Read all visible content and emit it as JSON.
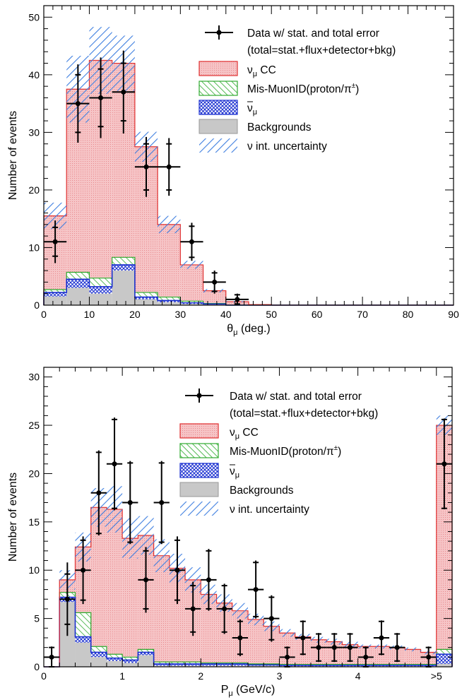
{
  "colors": {
    "cc_fill": "#f6c4c6",
    "cc_line": "#e03030",
    "misid": "#2faa2f",
    "nubar": "#1a2fd0",
    "bkg": "#c8c8c8",
    "unc": "#3f7fe0",
    "data": "#000000"
  },
  "chart_data": [
    {
      "type": "bar",
      "subtype": "stacked-histogram",
      "name": "theta",
      "xlabel": "θμ (deg.)",
      "xlabel_main": "θ",
      "xlabel_sub": "μ",
      "xlabel_rest": " (deg.)",
      "ylabel": "Number of events",
      "xlim": [
        0,
        90
      ],
      "ylim": [
        0,
        52
      ],
      "xticks": [
        0,
        10,
        20,
        30,
        40,
        50,
        60,
        70,
        80,
        90
      ],
      "xtick_labels": [
        "0",
        "10",
        "20",
        "30",
        "40",
        "50",
        "60",
        "70",
        "80",
        "90"
      ],
      "yticks": [
        0,
        10,
        20,
        30,
        40,
        50
      ],
      "ytick_labels": [
        "0",
        "10",
        "20",
        "30",
        "40",
        "50"
      ],
      "bin_edges": [
        0,
        5,
        10,
        15,
        20,
        25,
        30,
        35,
        40,
        45,
        50,
        55,
        60,
        65,
        70,
        75,
        80,
        85,
        90
      ],
      "bkg": [
        1.5,
        3.0,
        2.0,
        6.0,
        1.0,
        0.5,
        0.2,
        0.1,
        0.0,
        0.0,
        0,
        0,
        0,
        0,
        0,
        0,
        0,
        0
      ],
      "nubar": [
        0.7,
        1.5,
        1.2,
        1.0,
        0.4,
        0.3,
        0.2,
        0.1,
        0.0,
        0.0,
        0,
        0,
        0,
        0,
        0,
        0,
        0,
        0
      ],
      "misid": [
        0.5,
        1.2,
        1.5,
        1.3,
        0.8,
        0.6,
        0.3,
        0.1,
        0.0,
        0.0,
        0,
        0,
        0,
        0,
        0,
        0,
        0,
        0
      ],
      "total": [
        15.5,
        37.5,
        42.5,
        42.0,
        27.5,
        14.0,
        7.0,
        2.5,
        0.6,
        0.1,
        0,
        0,
        0,
        0,
        0,
        0,
        0,
        0
      ],
      "unc": [
        2.3,
        5.8,
        5.8,
        4.8,
        2.6,
        1.5,
        0.7,
        0.3,
        0.1,
        0.0,
        0,
        0,
        0,
        0,
        0,
        0,
        0,
        0
      ],
      "data": [
        {
          "x": 2.5,
          "y": 11,
          "xerr": 2.5,
          "stat": 2.5,
          "tot": 3.7
        },
        {
          "x": 7.5,
          "y": 35,
          "xerr": 2.5,
          "stat": 5.0,
          "tot": 6.8
        },
        {
          "x": 12.5,
          "y": 36,
          "xerr": 2.5,
          "stat": 5.0,
          "tot": 7.0
        },
        {
          "x": 17.5,
          "y": 37,
          "xerr": 2.5,
          "stat": 5.0,
          "tot": 7.2
        },
        {
          "x": 22.5,
          "y": 24,
          "xerr": 2.5,
          "stat": 4.0,
          "tot": 5.2
        },
        {
          "x": 27.5,
          "y": 24,
          "xerr": 2.5,
          "stat": 4.0,
          "tot": 5.0
        },
        {
          "x": 32.5,
          "y": 11,
          "xerr": 2.5,
          "stat": 2.7,
          "tot": 3.3
        },
        {
          "x": 37.5,
          "y": 4,
          "xerr": 2.5,
          "stat": 1.6,
          "tot": 2.0
        },
        {
          "x": 42.5,
          "y": 1,
          "xerr": 2.5,
          "stat": 0.8,
          "tot": 1.0
        }
      ],
      "legend": {
        "data": "Data w/ stat. and total error",
        "data_note": "(total=stat.+flux+detector+bkg)",
        "cc_main": "ν",
        "cc_sub": "μ",
        "cc_rest": " CC",
        "misid_main": "Mis-MuonID(proton/π",
        "misid_sup": "±",
        "misid_close": ")",
        "nubar_main": "ν",
        "nubar_sub": "μ",
        "bkg": "Backgrounds",
        "unc": "ν int. uncertainty"
      }
    },
    {
      "type": "bar",
      "subtype": "stacked-histogram",
      "name": "momentum",
      "xlabel": "Pμ (GeV/c)",
      "xlabel_main": "P",
      "xlabel_sub": "μ",
      "xlabel_rest": " (GeV/c)",
      "ylabel": "Number of events",
      "xlim": [
        0,
        5.2
      ],
      "ylim": [
        0,
        31
      ],
      "xticks": [
        0,
        1,
        2,
        3,
        4,
        5
      ],
      "xtick_labels": [
        "0",
        "1",
        "2",
        "3",
        "4",
        ">5"
      ],
      "yticks": [
        0,
        5,
        10,
        15,
        20,
        25,
        30
      ],
      "ytick_labels": [
        "0",
        "5",
        "10",
        "15",
        "20",
        "25",
        "30"
      ],
      "bin_edges": [
        0,
        0.2,
        0.4,
        0.6,
        0.8,
        1.0,
        1.2,
        1.4,
        1.6,
        1.8,
        2.0,
        2.2,
        2.4,
        2.6,
        2.8,
        3.0,
        3.2,
        3.4,
        3.6,
        3.8,
        4.0,
        4.2,
        4.4,
        4.6,
        4.8,
        5.0,
        5.2
      ],
      "bkg": [
        0,
        6.7,
        2.5,
        1.0,
        0.6,
        0.4,
        1.2,
        0.1,
        0.1,
        0.1,
        0.1,
        0.1,
        0.1,
        0.1,
        0.1,
        0.05,
        0.05,
        0.05,
        0.05,
        0.05,
        0.05,
        0.05,
        0.05,
        0.05,
        0.05,
        0.3
      ],
      "nubar": [
        0,
        0.5,
        0.6,
        0.5,
        0.3,
        0.3,
        0.3,
        0.2,
        0.2,
        0.2,
        0.2,
        0.2,
        0.2,
        0.1,
        0.1,
        0.1,
        0.1,
        0.1,
        0.1,
        0.1,
        0.1,
        0.1,
        0.1,
        0.1,
        0.1,
        1.0
      ],
      "misid": [
        0,
        0.5,
        2.5,
        0.6,
        0.4,
        0.3,
        0.3,
        0.2,
        0.2,
        0.2,
        0.1,
        0.1,
        0.1,
        0.1,
        0.1,
        0.1,
        0.1,
        0.1,
        0.1,
        0.1,
        0.1,
        0.1,
        0.1,
        0.1,
        0.1,
        0.5
      ],
      "total": [
        0,
        9.0,
        12.4,
        16.5,
        16.3,
        13.3,
        13.6,
        11.5,
        10.2,
        9.0,
        7.5,
        6.6,
        5.8,
        4.9,
        4.2,
        3.5,
        3.1,
        2.8,
        2.6,
        2.3,
        2.1,
        2.1,
        2.0,
        1.8,
        1.5,
        25.0
      ],
      "unc": [
        0,
        1.0,
        1.5,
        2.0,
        2.4,
        2.1,
        2.0,
        1.7,
        1.5,
        1.3,
        1.0,
        0.9,
        0.8,
        0.6,
        0.5,
        0.4,
        0.3,
        0.3,
        0.3,
        0.3,
        0.2,
        0.2,
        0.2,
        0.2,
        0.2,
        1.0
      ],
      "data": [
        {
          "x": 0.1,
          "y": 1,
          "xerr": 0.1,
          "stat": 1.0,
          "tot": 1.1
        },
        {
          "x": 0.3,
          "y": 7,
          "xerr": 0.1,
          "stat": 2.6,
          "tot": 3.8
        },
        {
          "x": 0.5,
          "y": 10,
          "xerr": 0.1,
          "stat": 3.1,
          "tot": 3.5
        },
        {
          "x": 0.7,
          "y": 18,
          "xerr": 0.1,
          "stat": 4.2,
          "tot": 4.4
        },
        {
          "x": 0.9,
          "y": 21,
          "xerr": 0.1,
          "stat": 4.6,
          "tot": 4.8
        },
        {
          "x": 1.1,
          "y": 17,
          "xerr": 0.1,
          "stat": 4.1,
          "tot": 4.3
        },
        {
          "x": 1.3,
          "y": 9,
          "xerr": 0.1,
          "stat": 3.0,
          "tot": 3.4
        },
        {
          "x": 1.5,
          "y": 17,
          "xerr": 0.1,
          "stat": 4.1,
          "tot": 4.3
        },
        {
          "x": 1.7,
          "y": 10,
          "xerr": 0.1,
          "stat": 3.1,
          "tot": 3.5
        },
        {
          "x": 1.9,
          "y": 6,
          "xerr": 0.1,
          "stat": 2.4,
          "tot": 2.8
        },
        {
          "x": 2.1,
          "y": 9,
          "xerr": 0.1,
          "stat": 3.0,
          "tot": 3.2
        },
        {
          "x": 2.3,
          "y": 6,
          "xerr": 0.1,
          "stat": 2.4,
          "tot": 2.6
        },
        {
          "x": 2.5,
          "y": 3,
          "xerr": 0.1,
          "stat": 1.7,
          "tot": 1.9
        },
        {
          "x": 2.7,
          "y": 8,
          "xerr": 0.1,
          "stat": 2.8,
          "tot": 3.0
        },
        {
          "x": 2.9,
          "y": 5,
          "xerr": 0.1,
          "stat": 2.2,
          "tot": 2.4
        },
        {
          "x": 3.1,
          "y": 1,
          "xerr": 0.1,
          "stat": 1.0,
          "tot": 1.1
        },
        {
          "x": 3.3,
          "y": 3,
          "xerr": 0.1,
          "stat": 1.7,
          "tot": 1.8
        },
        {
          "x": 3.5,
          "y": 2,
          "xerr": 0.1,
          "stat": 1.4,
          "tot": 1.5
        },
        {
          "x": 3.7,
          "y": 2,
          "xerr": 0.1,
          "stat": 1.4,
          "tot": 1.5
        },
        {
          "x": 3.9,
          "y": 2,
          "xerr": 0.1,
          "stat": 1.4,
          "tot": 1.5
        },
        {
          "x": 4.1,
          "y": 1,
          "xerr": 0.1,
          "stat": 1.0,
          "tot": 1.1
        },
        {
          "x": 4.3,
          "y": 3,
          "xerr": 0.1,
          "stat": 1.7,
          "tot": 1.8
        },
        {
          "x": 4.5,
          "y": 2,
          "xerr": 0.1,
          "stat": 1.4,
          "tot": 1.5
        },
        {
          "x": 4.9,
          "y": 1,
          "xerr": 0.1,
          "stat": 1.0,
          "tot": 1.1
        },
        {
          "x": 5.1,
          "y": 21,
          "xerr": 0.1,
          "stat": 4.6,
          "tot": 4.7
        }
      ],
      "legend": {
        "data": "Data w/ stat. and total error",
        "data_note": "(total=stat.+flux+detector+bkg)",
        "cc_main": "ν",
        "cc_sub": "μ",
        "cc_rest": " CC",
        "misid_main": "Mis-MuonID(proton/π",
        "misid_sup": "±",
        "misid_close": ")",
        "nubar_main": "ν",
        "nubar_sub": "μ",
        "bkg": "Backgrounds",
        "unc": "ν int. uncertainty"
      }
    }
  ]
}
